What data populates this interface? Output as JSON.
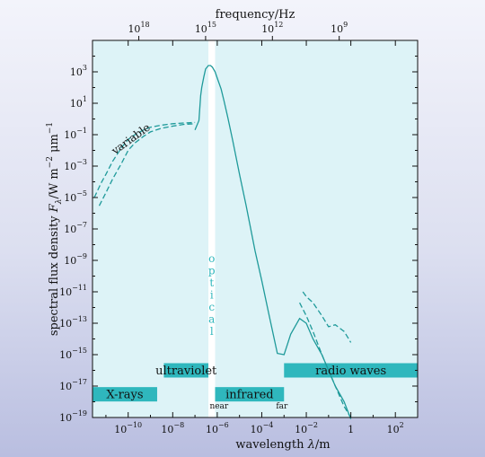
{
  "chart_data": {
    "type": "line",
    "top_axis_label": "frequency/Hz",
    "top_ticks": [
      {
        "value": 1e+18,
        "base": "10",
        "exp": "18"
      },
      {
        "value": 1000000000000000.0,
        "base": "10",
        "exp": "15"
      },
      {
        "value": 1000000000000.0,
        "base": "10",
        "exp": "12"
      },
      {
        "value": 1000000000.0,
        "base": "10",
        "exp": "9"
      }
    ],
    "xlabel_pre": "wavelength ",
    "xlabel_sym": "λ",
    "xlabel_post": "/m",
    "ylabel_pre": "spectral flux density ",
    "ylabel_sym": "F",
    "ylabel_sub": "λ",
    "ylabel_post1": "/W m",
    "ylabel_sup1": "−2",
    "ylabel_post2": " μm",
    "ylabel_sup2": "−1",
    "x_scale": "log",
    "y_scale": "log",
    "xlim": [
      2.5e-12,
      1000
    ],
    "ylim": [
      1e-19,
      100000.0
    ],
    "x_ticks": [
      {
        "value": 1e-10,
        "base": "10",
        "exp": "−10"
      },
      {
        "value": 1e-08,
        "base": "10",
        "exp": "−8"
      },
      {
        "value": 1e-06,
        "base": "10",
        "exp": "−6"
      },
      {
        "value": 0.0001,
        "base": "10",
        "exp": "−4"
      },
      {
        "value": 0.01,
        "base": "10",
        "exp": "−2"
      },
      {
        "value": 1,
        "base": "1",
        "exp": ""
      },
      {
        "value": 100,
        "base": "10",
        "exp": "2"
      }
    ],
    "y_ticks": [
      {
        "value": 1000.0,
        "base": "10",
        "exp": "3"
      },
      {
        "value": 10.0,
        "base": "10",
        "exp": "1"
      },
      {
        "value": 0.1,
        "base": "10",
        "exp": "−1"
      },
      {
        "value": 0.001,
        "base": "10",
        "exp": "−3"
      },
      {
        "value": 1e-05,
        "base": "10",
        "exp": "−5"
      },
      {
        "value": 1e-07,
        "base": "10",
        "exp": "−7"
      },
      {
        "value": 1e-09,
        "base": "10",
        "exp": "−9"
      },
      {
        "value": 1e-11,
        "base": "10",
        "exp": "−11"
      },
      {
        "value": 1e-13,
        "base": "10",
        "exp": "−13"
      },
      {
        "value": 1e-15,
        "base": "10",
        "exp": "−15"
      },
      {
        "value": 1e-17,
        "base": "10",
        "exp": "−17"
      },
      {
        "value": 1e-19,
        "base": "10",
        "exp": "−19"
      }
    ],
    "series": [
      {
        "style": "solid",
        "x": [
          1e-07,
          1.5e-07,
          1.8e-07,
          2e-07,
          2.5e-07,
          3e-07,
          4e-07,
          5e-07,
          6e-07,
          8e-07,
          1e-06,
          1.5e-06,
          2e-06,
          3e-06,
          5e-06,
          1e-05,
          2e-05,
          5e-05,
          0.0001,
          0.0002,
          0.0005,
          0.001,
          0.002,
          0.005,
          0.01,
          0.02,
          0.05,
          0.1,
          0.2,
          0.5,
          1
        ],
        "y": [
          0.2,
          0.8,
          30.0,
          100.0,
          500.0,
          1500.0,
          2500.0,
          2500.0,
          2000.0,
          1000.0,
          400.0,
          80.0,
          15.0,
          1.2,
          0.04,
          0.0003,
          3e-06,
          4e-09,
          5e-11,
          5e-13,
          1.2e-15,
          1e-15,
          2e-14,
          2e-13,
          1e-13,
          1e-14,
          1e-15,
          1e-16,
          1e-17,
          1e-18,
          8e-20
        ]
      },
      {
        "style": "dashed",
        "x": [
          3e-12,
          6e-12,
          1e-11,
          2e-11,
          5e-11,
          1e-10,
          2e-10,
          5e-10,
          1e-09,
          3e-09,
          1e-08,
          3e-08,
          1e-07
        ],
        "y": [
          1e-05,
          8e-05,
          0.0003,
          0.002,
          0.015,
          0.05,
          0.1,
          0.2,
          0.3,
          0.4,
          0.5,
          0.55,
          0.6
        ]
      },
      {
        "style": "dashed",
        "x": [
          5e-12,
          1e-11,
          2e-11,
          5e-11,
          1e-10,
          2e-10,
          5e-10,
          1e-09,
          3e-09,
          1e-08,
          3e-08,
          1e-07
        ],
        "y": [
          3e-06,
          2e-05,
          0.00015,
          0.0015,
          0.01,
          0.03,
          0.08,
          0.15,
          0.25,
          0.35,
          0.45,
          0.5
        ]
      },
      {
        "style": "dashed",
        "x": [
          0.007,
          0.01,
          0.02,
          0.05,
          0.1,
          0.2,
          0.5,
          1
        ],
        "y": [
          1e-11,
          5e-12,
          2e-12,
          3e-13,
          6e-14,
          8e-14,
          3e-14,
          6e-15
        ]
      },
      {
        "style": "dashed",
        "x": [
          0.005,
          0.01,
          0.02,
          0.05,
          0.1,
          0.2,
          0.5,
          1
        ],
        "y": [
          2e-12,
          3e-13,
          3e-14,
          1e-15,
          1e-16,
          1e-17,
          5e-19,
          1e-19
        ]
      }
    ],
    "optical_band": {
      "x_from": 4e-07,
      "x_to": 8e-07,
      "label_letters": [
        "o",
        "p",
        "t",
        "i",
        "c",
        "a",
        "l"
      ]
    },
    "bands": [
      {
        "label": "X-rays",
        "x_from": 2.5e-12,
        "x_to": 2e-09,
        "y_center": 3e-18
      },
      {
        "label": "ultraviolet",
        "x_from": 4e-09,
        "x_to": 4e-07,
        "y_center": 1e-16
      },
      {
        "label": "infrared",
        "x_from": 8e-07,
        "x_to": 0.001,
        "y_center": 3e-18
      },
      {
        "label": "radio waves",
        "x_from": 0.001,
        "x_to": 1000,
        "y_center": 1e-16
      }
    ],
    "annotations": {
      "variable": "variable",
      "near": "near",
      "far": "far"
    },
    "colors": {
      "plot_bg": "#ddf3f7",
      "band": "#2fb7bd",
      "curve": "#1f9a9a",
      "optical": "#ffffff"
    }
  }
}
